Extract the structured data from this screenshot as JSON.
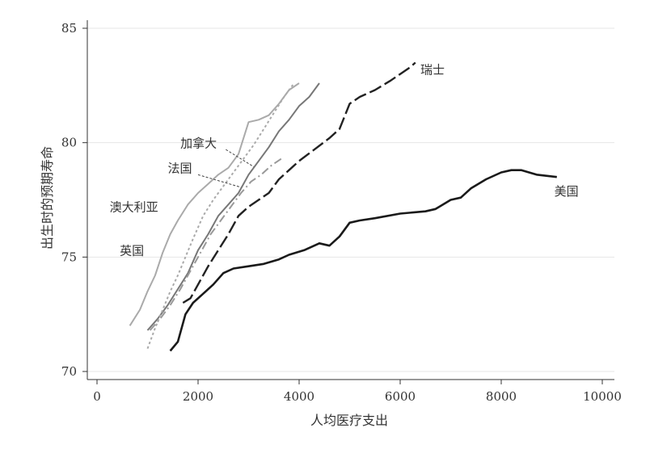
{
  "chart_data": {
    "type": "line",
    "title": "",
    "xlabel": "人均医疗支出",
    "ylabel": "出生时的预期寿命",
    "xlim": [
      0,
      10000
    ],
    "ylim": [
      70,
      85
    ],
    "xticks": [
      0,
      2000,
      4000,
      6000,
      8000,
      10000
    ],
    "yticks": [
      70,
      75,
      80,
      85
    ],
    "grid": "horizontal",
    "legend": "inline labels",
    "series": [
      {
        "name": "美国",
        "color": "#1a1a1a",
        "dash": "solid",
        "x": [
          1450,
          1600,
          1750,
          1900,
          2100,
          2300,
          2500,
          2700,
          3000,
          3300,
          3600,
          3800,
          4100,
          4400,
          4600,
          4800,
          5000,
          5200,
          5500,
          6000,
          6500,
          6700,
          7000,
          7200,
          7400,
          7700,
          8000,
          8200,
          8400,
          8700,
          9100
        ],
        "y": [
          70.9,
          71.3,
          72.5,
          73.0,
          73.4,
          73.8,
          74.3,
          74.5,
          74.6,
          74.7,
          74.9,
          75.1,
          75.3,
          75.6,
          75.5,
          75.9,
          76.5,
          76.6,
          76.7,
          76.9,
          77.0,
          77.1,
          77.5,
          77.6,
          78.0,
          78.4,
          78.7,
          78.8,
          78.8,
          78.6,
          78.5
        ]
      },
      {
        "name": "瑞士",
        "color": "#222222",
        "dash": "long",
        "x": [
          1700,
          1850,
          2000,
          2200,
          2400,
          2600,
          2800,
          3000,
          3200,
          3400,
          3600,
          3800,
          4000,
          4300,
          4600,
          4800,
          5000,
          5200,
          5500,
          5800,
          6000,
          6200,
          6300
        ],
        "y": [
          73.0,
          73.2,
          73.8,
          74.6,
          75.3,
          76.0,
          76.8,
          77.2,
          77.5,
          77.8,
          78.4,
          78.8,
          79.2,
          79.7,
          80.2,
          80.6,
          81.7,
          82.0,
          82.3,
          82.7,
          83.0,
          83.3,
          83.5
        ]
      },
      {
        "name": "加拿大",
        "color": "#777777",
        "dash": "solid",
        "x": [
          1000,
          1200,
          1400,
          1600,
          1800,
          2000,
          2200,
          2400,
          2600,
          2800,
          3000,
          3200,
          3400,
          3600,
          3800,
          4000,
          4200,
          4400
        ],
        "y": [
          71.8,
          72.3,
          72.9,
          73.6,
          74.3,
          75.3,
          76.0,
          76.8,
          77.3,
          77.8,
          78.6,
          79.2,
          79.8,
          80.5,
          81.0,
          81.6,
          82.0,
          82.6
        ]
      },
      {
        "name": "法国",
        "color": "#999999",
        "dash": "dashdot",
        "x": [
          1050,
          1250,
          1450,
          1650,
          1850,
          2050,
          2250,
          2450,
          2650,
          2850,
          3050,
          3250,
          3450,
          3650
        ],
        "y": [
          71.8,
          72.3,
          72.9,
          73.6,
          74.4,
          75.2,
          76.0,
          76.6,
          77.2,
          77.8,
          78.3,
          78.6,
          79.0,
          79.3
        ]
      },
      {
        "name": "澳大利亚",
        "color": "#aaaaaa",
        "dash": "solid",
        "x": [
          650,
          850,
          1000,
          1150,
          1300,
          1450,
          1600,
          1800,
          2000,
          2200,
          2400,
          2600,
          2800,
          3000,
          3200,
          3400,
          3600,
          3800,
          4000
        ],
        "y": [
          72.0,
          72.7,
          73.5,
          74.2,
          75.2,
          76.0,
          76.6,
          77.3,
          77.8,
          78.2,
          78.6,
          78.9,
          79.5,
          80.9,
          81.0,
          81.2,
          81.7,
          82.3,
          82.6
        ]
      },
      {
        "name": "英国",
        "color": "#aaaaaa",
        "dash": "dotted",
        "x": [
          1000,
          1150,
          1300,
          1450,
          1600,
          1750,
          1900,
          2100,
          2300,
          2500,
          2700,
          2900,
          3100,
          3300,
          3500,
          3700,
          3900
        ],
        "y": [
          71.0,
          71.9,
          72.7,
          73.5,
          74.2,
          75.0,
          75.8,
          76.8,
          77.5,
          78.1,
          78.7,
          79.3,
          79.9,
          80.6,
          81.3,
          82.0,
          82.6
        ]
      }
    ]
  }
}
